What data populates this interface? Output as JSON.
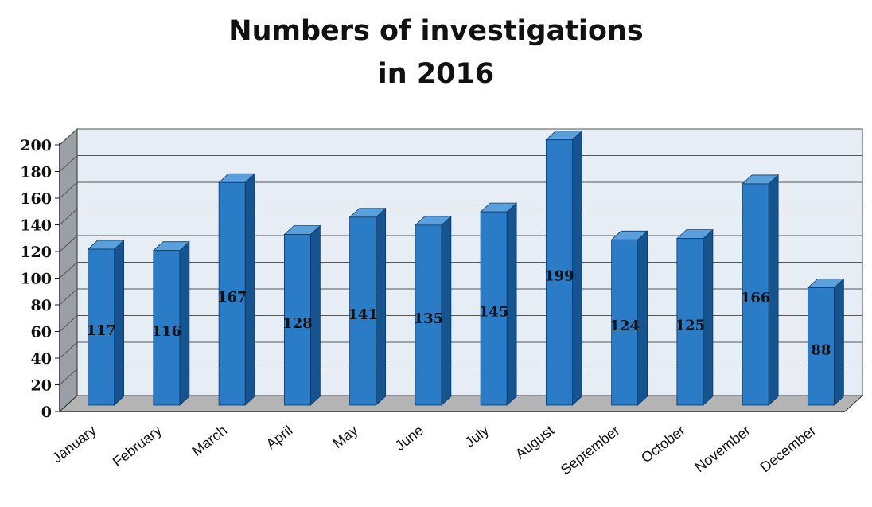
{
  "chart_data": {
    "type": "bar",
    "title_lines": [
      "Numbers of investigations",
      "in 2016"
    ],
    "categories": [
      "January",
      "February",
      "March",
      "April",
      "May",
      "June",
      "July",
      "August",
      "September",
      "October",
      "November",
      "December"
    ],
    "values": [
      117,
      116,
      167,
      128,
      141,
      135,
      145,
      199,
      124,
      125,
      166,
      88
    ],
    "data_labels": [
      "117",
      "116",
      "167",
      "128",
      "141",
      "135",
      "145",
      "199",
      "124",
      "125",
      "166",
      "88"
    ],
    "ylim": [
      0,
      200
    ],
    "yticks": [
      0,
      20,
      40,
      60,
      80,
      100,
      120,
      140,
      160,
      180,
      200
    ],
    "grid": true,
    "style": "3d-column",
    "colors": {
      "bar_front": "#2a7cc6",
      "bar_side": "#15548f",
      "bar_top": "#5aa0dc",
      "wall": "#e6edf5",
      "side_wall": "#9aa0a6",
      "floor": "#b4b4b4",
      "gridline": "#555555"
    }
  }
}
